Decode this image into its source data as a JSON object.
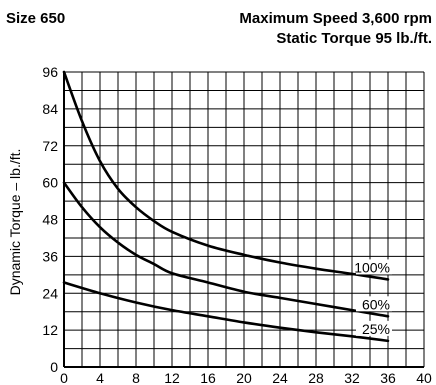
{
  "header": {
    "size": "Size 650",
    "max_speed": "Maximum Speed 3,600 rpm",
    "static_torque": "Static Torque 95 lb./ft."
  },
  "chart_data": {
    "type": "line",
    "title": "",
    "xlabel": "",
    "ylabel": "Dynamic Torque – lb./ft.",
    "xlim": [
      0,
      40
    ],
    "ylim": [
      0,
      96
    ],
    "x_ticks": [
      "0",
      "4",
      "8",
      "12",
      "16",
      "20",
      "24",
      "28",
      "32",
      "36",
      "40"
    ],
    "y_ticks": [
      "0",
      "12",
      "24",
      "36",
      "48",
      "60",
      "72",
      "84",
      "96"
    ],
    "grid": true,
    "series": [
      {
        "name": "100%",
        "points": [
          [
            0,
            96
          ],
          [
            2,
            80
          ],
          [
            4,
            67
          ],
          [
            6,
            58
          ],
          [
            8,
            52
          ],
          [
            10,
            47.5
          ],
          [
            12,
            44
          ],
          [
            16,
            39.5
          ],
          [
            20,
            36.5
          ],
          [
            24,
            34
          ],
          [
            28,
            32
          ],
          [
            32,
            30.3
          ],
          [
            36,
            28.5
          ]
        ]
      },
      {
        "name": "60%",
        "points": [
          [
            0,
            60
          ],
          [
            2,
            52
          ],
          [
            4,
            45.5
          ],
          [
            6,
            40.5
          ],
          [
            8,
            36.5
          ],
          [
            10,
            33.5
          ],
          [
            12,
            30.5
          ],
          [
            16,
            27.5
          ],
          [
            20,
            24.5
          ],
          [
            24,
            22.5
          ],
          [
            28,
            20.5
          ],
          [
            32,
            18.5
          ],
          [
            36,
            16.5
          ]
        ]
      },
      {
        "name": "25%",
        "points": [
          [
            0,
            27.5
          ],
          [
            4,
            24
          ],
          [
            8,
            21
          ],
          [
            12,
            18.5
          ],
          [
            16,
            16.5
          ],
          [
            20,
            14.5
          ],
          [
            24,
            12.8
          ],
          [
            28,
            11.3
          ],
          [
            32,
            10
          ],
          [
            36,
            8.5
          ]
        ]
      }
    ]
  }
}
